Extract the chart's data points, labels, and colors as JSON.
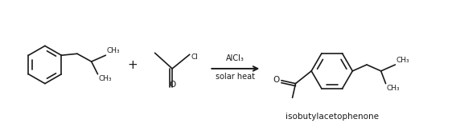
{
  "background_color": "#ffffff",
  "text_color": "#1a1a1a",
  "arrow_label_top": "AlCl₃",
  "arrow_label_bottom": "solar heat",
  "plus_sign": "+",
  "product_label": "isobutylacetophenone",
  "line_color": "#1a1a1a",
  "line_width": 1.2,
  "font_size_labels": 7.0,
  "font_size_atoms": 6.5,
  "font_size_product_label": 7.5,
  "figsize": [
    5.62,
    1.64
  ],
  "dpi": 100
}
